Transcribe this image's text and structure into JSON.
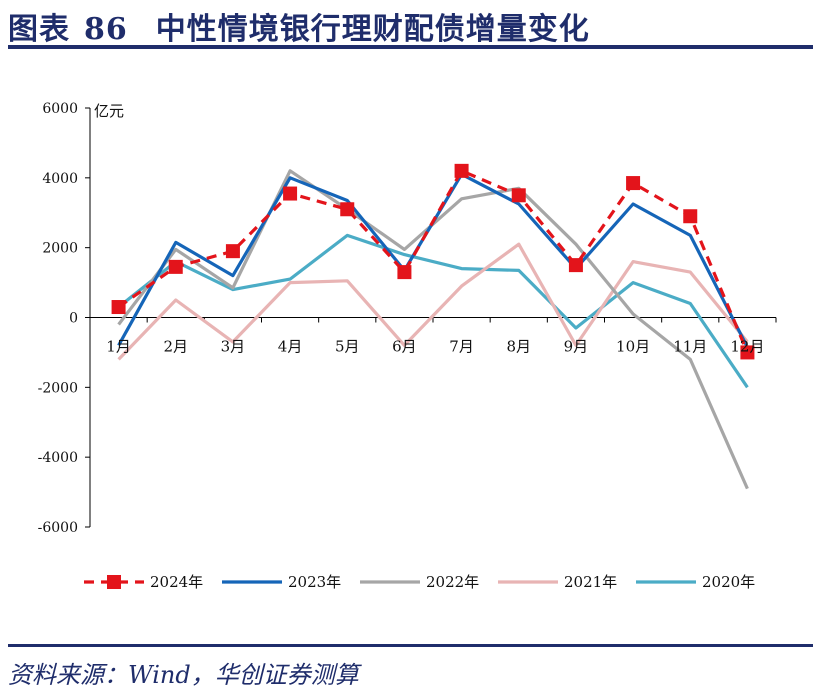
{
  "figure": {
    "label": "图表",
    "number": "86",
    "title": "中性情境银行理财配债增量变化",
    "source": "资料来源：Wind，华创证券测算"
  },
  "chart_data": {
    "type": "line",
    "ylabel": "亿元",
    "xlabel": "",
    "ylim": [
      -6000,
      6000
    ],
    "yticks": [
      6000,
      4000,
      2000,
      0,
      -2000,
      -4000,
      -6000
    ],
    "categories": [
      "1月",
      "2月",
      "3月",
      "4月",
      "5月",
      "6月",
      "7月",
      "8月",
      "9月",
      "10月",
      "11月",
      "12月"
    ],
    "legend_position": "bottom",
    "grid": false,
    "series": [
      {
        "name": "2024年",
        "color": "#e3141b",
        "style": "dashed-square",
        "values": [
          300,
          1450,
          1900,
          3550,
          3100,
          1300,
          4200,
          3500,
          1500,
          3850,
          2900,
          -1000
        ]
      },
      {
        "name": "2023年",
        "color": "#1565b8",
        "style": "solid",
        "values": [
          -800,
          2150,
          1200,
          4000,
          3350,
          1350,
          4100,
          3250,
          1400,
          3250,
          2350,
          -850
        ]
      },
      {
        "name": "2022年",
        "color": "#a6a6a6",
        "style": "solid",
        "values": [
          -200,
          1950,
          850,
          4200,
          3100,
          1950,
          3400,
          3700,
          2100,
          100,
          -1200,
          -4900
        ]
      },
      {
        "name": "2021年",
        "color": "#e8b4b4",
        "style": "solid",
        "values": [
          -1200,
          500,
          -700,
          1000,
          1050,
          -800,
          900,
          2100,
          -800,
          1600,
          1300,
          -700
        ]
      },
      {
        "name": "2020年",
        "color": "#4bacc6",
        "style": "solid",
        "values": [
          300,
          1600,
          800,
          1100,
          2350,
          1800,
          1400,
          1350,
          -300,
          1000,
          400,
          -2000
        ]
      }
    ]
  }
}
